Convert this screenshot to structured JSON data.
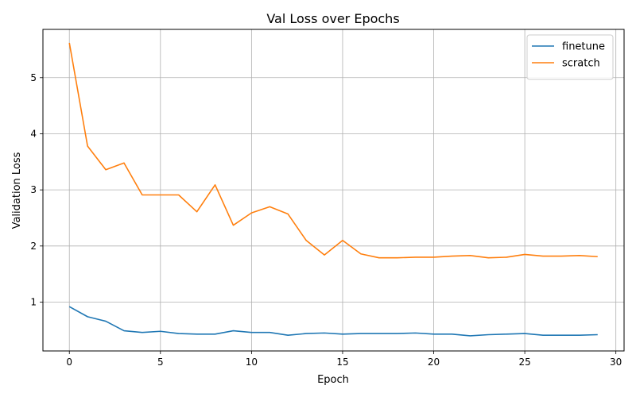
{
  "chart_data": {
    "type": "line",
    "title": "Val Loss over Epochs",
    "xlabel": "Epoch",
    "ylabel": "Validation Loss",
    "xlim": [
      -1.45,
      30.45
    ],
    "ylim": [
      0.13,
      5.86
    ],
    "xticks": [
      0,
      5,
      10,
      15,
      20,
      25,
      30
    ],
    "yticks": [
      1,
      2,
      3,
      4,
      5
    ],
    "grid": true,
    "legend_position": "top-right",
    "x": [
      0,
      1,
      2,
      3,
      4,
      5,
      6,
      7,
      8,
      9,
      10,
      11,
      12,
      13,
      14,
      15,
      16,
      17,
      18,
      19,
      20,
      21,
      22,
      23,
      24,
      25,
      26,
      27,
      28,
      29
    ],
    "series": [
      {
        "name": "finetune",
        "color": "#1f77b4",
        "values": [
          0.92,
          0.74,
          0.66,
          0.49,
          0.46,
          0.48,
          0.44,
          0.43,
          0.43,
          0.49,
          0.46,
          0.46,
          0.41,
          0.44,
          0.45,
          0.43,
          0.44,
          0.44,
          0.44,
          0.45,
          0.43,
          0.43,
          0.4,
          0.42,
          0.43,
          0.44,
          0.41,
          0.41,
          0.41,
          0.42
        ]
      },
      {
        "name": "scratch",
        "color": "#ff7f0e",
        "values": [
          5.62,
          3.78,
          3.36,
          3.48,
          2.91,
          2.91,
          2.91,
          2.61,
          3.09,
          2.37,
          2.59,
          2.7,
          2.57,
          2.1,
          1.84,
          2.1,
          1.86,
          1.79,
          1.79,
          1.8,
          1.8,
          1.82,
          1.83,
          1.79,
          1.8,
          1.85,
          1.82,
          1.82,
          1.83,
          1.81
        ]
      }
    ]
  }
}
